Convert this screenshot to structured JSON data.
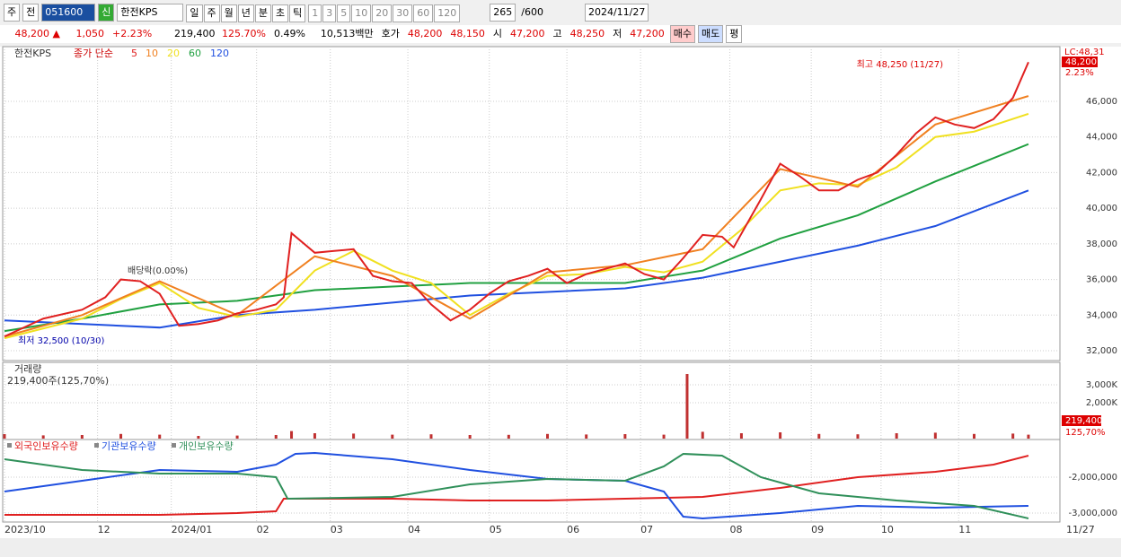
{
  "toolbar": {
    "kind": "주",
    "kind2": "전",
    "code": "051600",
    "flag": "신",
    "name": "한전KPS",
    "periods": [
      "일",
      "주",
      "월",
      "년",
      "분",
      "초",
      "틱"
    ],
    "intervals": [
      "1",
      "3",
      "5",
      "10",
      "20",
      "30",
      "60",
      "120"
    ],
    "count": "265",
    "max": "/600",
    "date": "2024/11/27"
  },
  "quote": {
    "price": "48,200 ▲",
    "change": "1,050",
    "rate": "+2.23%",
    "volume": "219,400",
    "vol_ratio": "125.70%",
    "turnover": "0.49%",
    "amount": "10,513백만",
    "ask_label": "호가",
    "ask": "48,200",
    "bid": "48,150",
    "open_label": "시",
    "open": "47,200",
    "high_label": "고",
    "high": "48,250",
    "low_label": "저",
    "low": "47,200",
    "buy": "매수",
    "sell": "매도",
    "avg": "평"
  },
  "price_chart": {
    "type": "line",
    "name": "한전KPS",
    "legend_label": "종가 단순",
    "ylim": [
      31446,
      49072
    ],
    "yticks": [
      {
        "value": 32000,
        "label": "32,000"
      },
      {
        "value": 34000,
        "label": "34,000"
      },
      {
        "value": 36000,
        "label": "36,000"
      },
      {
        "value": 38000,
        "label": "38,000"
      },
      {
        "value": 40000,
        "label": "40,000"
      },
      {
        "value": 42000,
        "label": "42,000"
      },
      {
        "value": 44000,
        "label": "44,000"
      },
      {
        "value": 46000,
        "label": "46,000"
      }
    ],
    "xlim": [
      0,
      272
    ],
    "xticks": [
      {
        "value": 0,
        "label": "2023/10"
      },
      {
        "value": 24,
        "label": "12"
      },
      {
        "value": 43,
        "label": "2024/01"
      },
      {
        "value": 65,
        "label": "02"
      },
      {
        "value": 84,
        "label": "03"
      },
      {
        "value": 104,
        "label": "04"
      },
      {
        "value": 125,
        "label": "05"
      },
      {
        "value": 145,
        "label": "06"
      },
      {
        "value": 164,
        "label": "07"
      },
      {
        "value": 187,
        "label": "08"
      },
      {
        "value": 208,
        "label": "09"
      },
      {
        "value": 226,
        "label": "10"
      },
      {
        "value": 246,
        "label": "11"
      },
      {
        "value": 264,
        "label": "11/27"
      }
    ],
    "series": [
      {
        "name": "5",
        "color": "#e02020",
        "x": [
          0,
          10,
          20,
          26,
          30,
          35,
          40,
          45,
          50,
          55,
          60,
          65,
          70,
          72,
          74,
          80,
          85,
          90,
          95,
          100,
          105,
          110,
          115,
          120,
          125,
          130,
          135,
          140,
          145,
          150,
          155,
          160,
          165,
          170,
          175,
          180,
          185,
          188,
          195,
          200,
          205,
          210,
          215,
          220,
          225,
          230,
          235,
          240,
          245,
          250,
          255,
          260,
          264
        ],
        "values": [
          32800,
          33800,
          34300,
          35000,
          36000,
          35900,
          35200,
          33400,
          33500,
          33700,
          34100,
          34300,
          34600,
          35000,
          38600,
          37500,
          37600,
          37700,
          36200,
          35900,
          35800,
          34600,
          33700,
          34300,
          35200,
          35900,
          36200,
          36600,
          35800,
          36300,
          36600,
          36900,
          36300,
          36000,
          37200,
          38500,
          38400,
          37800,
          40500,
          42500,
          41800,
          41000,
          41000,
          41600,
          42000,
          43000,
          44200,
          45100,
          44700,
          44500,
          45000,
          46200,
          48200
        ]
      },
      {
        "name": "10",
        "color": "#f08020",
        "x": [
          0,
          20,
          40,
          60,
          80,
          100,
          120,
          140,
          160,
          180,
          200,
          220,
          240,
          264
        ],
        "values": [
          32800,
          34000,
          35900,
          34000,
          37300,
          36200,
          33800,
          36400,
          36800,
          37700,
          42200,
          41200,
          44700,
          46300
        ]
      },
      {
        "name": "20",
        "color": "#f0e020",
        "x": [
          0,
          20,
          30,
          40,
          50,
          60,
          70,
          80,
          90,
          100,
          110,
          120,
          130,
          140,
          150,
          160,
          170,
          180,
          190,
          200,
          210,
          220,
          230,
          240,
          250,
          264
        ],
        "values": [
          32700,
          33800,
          34900,
          35800,
          34400,
          33900,
          34300,
          36500,
          37600,
          36500,
          35800,
          34000,
          35200,
          36200,
          36300,
          36700,
          36400,
          37000,
          38800,
          41000,
          41400,
          41300,
          42300,
          44000,
          44300,
          45300
        ]
      },
      {
        "name": "60",
        "color": "#20a040",
        "x": [
          0,
          20,
          40,
          60,
          80,
          100,
          120,
          140,
          160,
          180,
          200,
          220,
          240,
          264
        ],
        "values": [
          33100,
          33800,
          34600,
          34800,
          35400,
          35600,
          35800,
          35800,
          35800,
          36500,
          38300,
          39600,
          41500,
          43600
        ]
      },
      {
        "name": "120",
        "color": "#2050e0",
        "x": [
          0,
          40,
          60,
          80,
          100,
          120,
          140,
          160,
          180,
          200,
          220,
          240,
          264
        ],
        "values": [
          33700,
          33300,
          34000,
          34300,
          34700,
          35100,
          35300,
          35500,
          36100,
          37000,
          37900,
          39000,
          41000
        ]
      }
    ],
    "annotations": {
      "high": "최고 48,250 (11/27)",
      "low": "최저 32,500 (10/30)",
      "dividend": "배당락(0.00%)"
    },
    "lc_label": "LC:48,31",
    "last_price": "48,200",
    "last_rate": "2.23%"
  },
  "volume_chart": {
    "type": "bar",
    "title": "거래량",
    "info": "219,400주(125,70%)",
    "color": "#c03030",
    "ylim": [
      0,
      4000000
    ],
    "yticks": [
      {
        "value": 2000000,
        "label": "2,000K"
      },
      {
        "value": 3000000,
        "label": "3,000K"
      }
    ],
    "x": [
      0,
      10,
      20,
      30,
      40,
      50,
      60,
      70,
      74,
      80,
      90,
      100,
      110,
      120,
      130,
      140,
      150,
      160,
      170,
      176,
      180,
      190,
      200,
      210,
      220,
      230,
      240,
      250,
      260,
      264
    ],
    "values": [
      250000,
      180000,
      200000,
      260000,
      220000,
      150000,
      170000,
      200000,
      420000,
      300000,
      280000,
      220000,
      240000,
      200000,
      210000,
      260000,
      230000,
      250000,
      220000,
      3600000,
      380000,
      300000,
      350000,
      260000,
      240000,
      300000,
      330000,
      260000,
      280000,
      219400
    ],
    "last_label": "219,400",
    "last_ratio": "125,70%"
  },
  "holdings_chart": {
    "type": "line",
    "ylim": [
      -3250000,
      -1000000
    ],
    "yticks": [
      {
        "value": -3000000,
        "label": "-3,000,000"
      },
      {
        "value": -2000000,
        "label": "-2,000,000"
      }
    ],
    "series": [
      {
        "name": "외국인보유수량",
        "color": "#e02020",
        "x": [
          0,
          40,
          60,
          70,
          72,
          100,
          120,
          140,
          160,
          180,
          200,
          220,
          240,
          255,
          264
        ],
        "values": [
          -3050000,
          -3050000,
          -3000000,
          -2950000,
          -2600000,
          -2600000,
          -2650000,
          -2650000,
          -2600000,
          -2550000,
          -2300000,
          -2000000,
          -1850000,
          -1650000,
          -1400000
        ]
      },
      {
        "name": "기관보유수량",
        "color": "#2050e0",
        "x": [
          0,
          20,
          40,
          60,
          70,
          75,
          80,
          100,
          120,
          140,
          160,
          170,
          175,
          180,
          200,
          220,
          240,
          264
        ],
        "values": [
          -2400000,
          -2100000,
          -1800000,
          -1850000,
          -1650000,
          -1350000,
          -1325000,
          -1500000,
          -1800000,
          -2050000,
          -2100000,
          -2400000,
          -3100000,
          -3150000,
          -3000000,
          -2800000,
          -2850000,
          -2800000
        ]
      },
      {
        "name": "개인보유수량",
        "color": "#30905a",
        "x": [
          0,
          20,
          40,
          60,
          70,
          73,
          100,
          120,
          140,
          160,
          170,
          175,
          185,
          195,
          210,
          230,
          250,
          264
        ],
        "values": [
          -1500000,
          -1800000,
          -1900000,
          -1900000,
          -2000000,
          -2600000,
          -2550000,
          -2200000,
          -2050000,
          -2100000,
          -1700000,
          -1350000,
          -1400000,
          -2000000,
          -2450000,
          -2650000,
          -2800000,
          -3150000
        ]
      }
    ]
  }
}
